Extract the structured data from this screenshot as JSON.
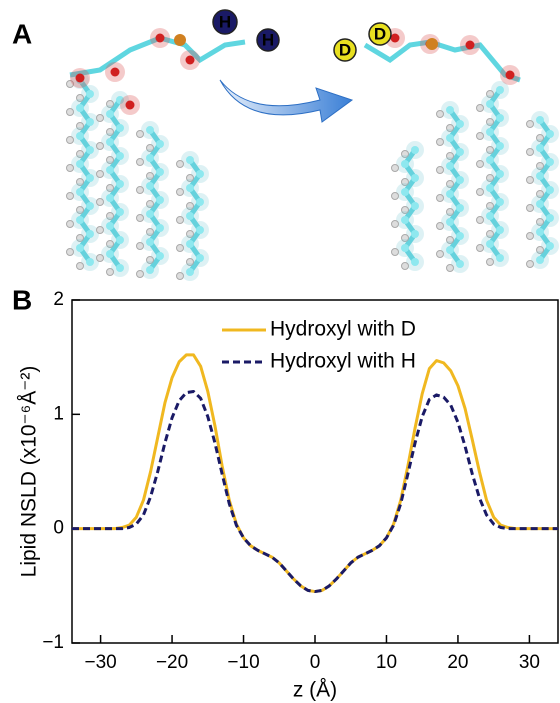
{
  "figure": {
    "panel_a_label": "A",
    "panel_b_label": "B",
    "atom_h_1": "H",
    "atom_h_2": "H",
    "atom_d_1": "D",
    "atom_d_2": "D"
  },
  "chart_data": {
    "type": "line",
    "x_label": "z (Å)",
    "y_label": "Lipid NSLD (x10⁻⁶Å⁻²)",
    "x": [
      -34,
      -30,
      -28,
      -27,
      -26,
      -25,
      -24,
      -23,
      -22,
      -21,
      -20,
      -19,
      -18,
      -17,
      -16,
      -15,
      -14,
      -13,
      -12,
      -11,
      -10,
      -9,
      -8,
      -7,
      -6,
      -5,
      -4,
      -3,
      -2,
      -1,
      0,
      1,
      2,
      3,
      4,
      5,
      6,
      7,
      8,
      9,
      10,
      11,
      12,
      13,
      14,
      15,
      16,
      17,
      18,
      19,
      20,
      21,
      22,
      23,
      24,
      25,
      26,
      27,
      28,
      30,
      34
    ],
    "series": [
      {
        "name": "Hydroxyl with D",
        "color": "#f0b820",
        "dash": false,
        "values": [
          0,
          0,
          0,
          0.01,
          0.03,
          0.1,
          0.25,
          0.5,
          0.8,
          1.1,
          1.32,
          1.46,
          1.52,
          1.52,
          1.42,
          1.2,
          0.9,
          0.55,
          0.25,
          0.04,
          -0.08,
          -0.15,
          -0.19,
          -0.22,
          -0.25,
          -0.3,
          -0.37,
          -0.44,
          -0.5,
          -0.54,
          -0.55,
          -0.54,
          -0.5,
          -0.44,
          -0.37,
          -0.3,
          -0.25,
          -0.22,
          -0.19,
          -0.15,
          -0.08,
          0.04,
          0.25,
          0.55,
          0.88,
          1.18,
          1.4,
          1.47,
          1.45,
          1.38,
          1.25,
          1.05,
          0.78,
          0.5,
          0.25,
          0.1,
          0.03,
          0.01,
          0,
          0,
          0
        ]
      },
      {
        "name": "Hydroxyl with H",
        "color": "#1a1a66",
        "dash": true,
        "values": [
          0,
          0,
          0,
          0,
          0.01,
          0.04,
          0.12,
          0.28,
          0.5,
          0.75,
          0.97,
          1.12,
          1.19,
          1.2,
          1.14,
          0.98,
          0.75,
          0.48,
          0.22,
          0.03,
          -0.08,
          -0.15,
          -0.19,
          -0.22,
          -0.25,
          -0.3,
          -0.37,
          -0.44,
          -0.5,
          -0.54,
          -0.55,
          -0.54,
          -0.5,
          -0.44,
          -0.37,
          -0.3,
          -0.25,
          -0.22,
          -0.19,
          -0.15,
          -0.08,
          0.03,
          0.22,
          0.48,
          0.75,
          0.98,
          1.13,
          1.17,
          1.15,
          1.08,
          0.93,
          0.72,
          0.48,
          0.27,
          0.12,
          0.04,
          0.01,
          0,
          0,
          0,
          0
        ]
      }
    ],
    "xlim": [
      -34,
      34
    ],
    "ylim": [
      -1,
      2
    ],
    "xticks": [
      {
        "value": -30,
        "label": "−30"
      },
      {
        "value": -20,
        "label": "−20"
      },
      {
        "value": -10,
        "label": "−10"
      },
      0,
      10,
      20,
      30
    ],
    "yticks": [
      {
        "value": -1,
        "label": "−1"
      },
      0,
      1,
      2
    ],
    "legend": "top"
  }
}
